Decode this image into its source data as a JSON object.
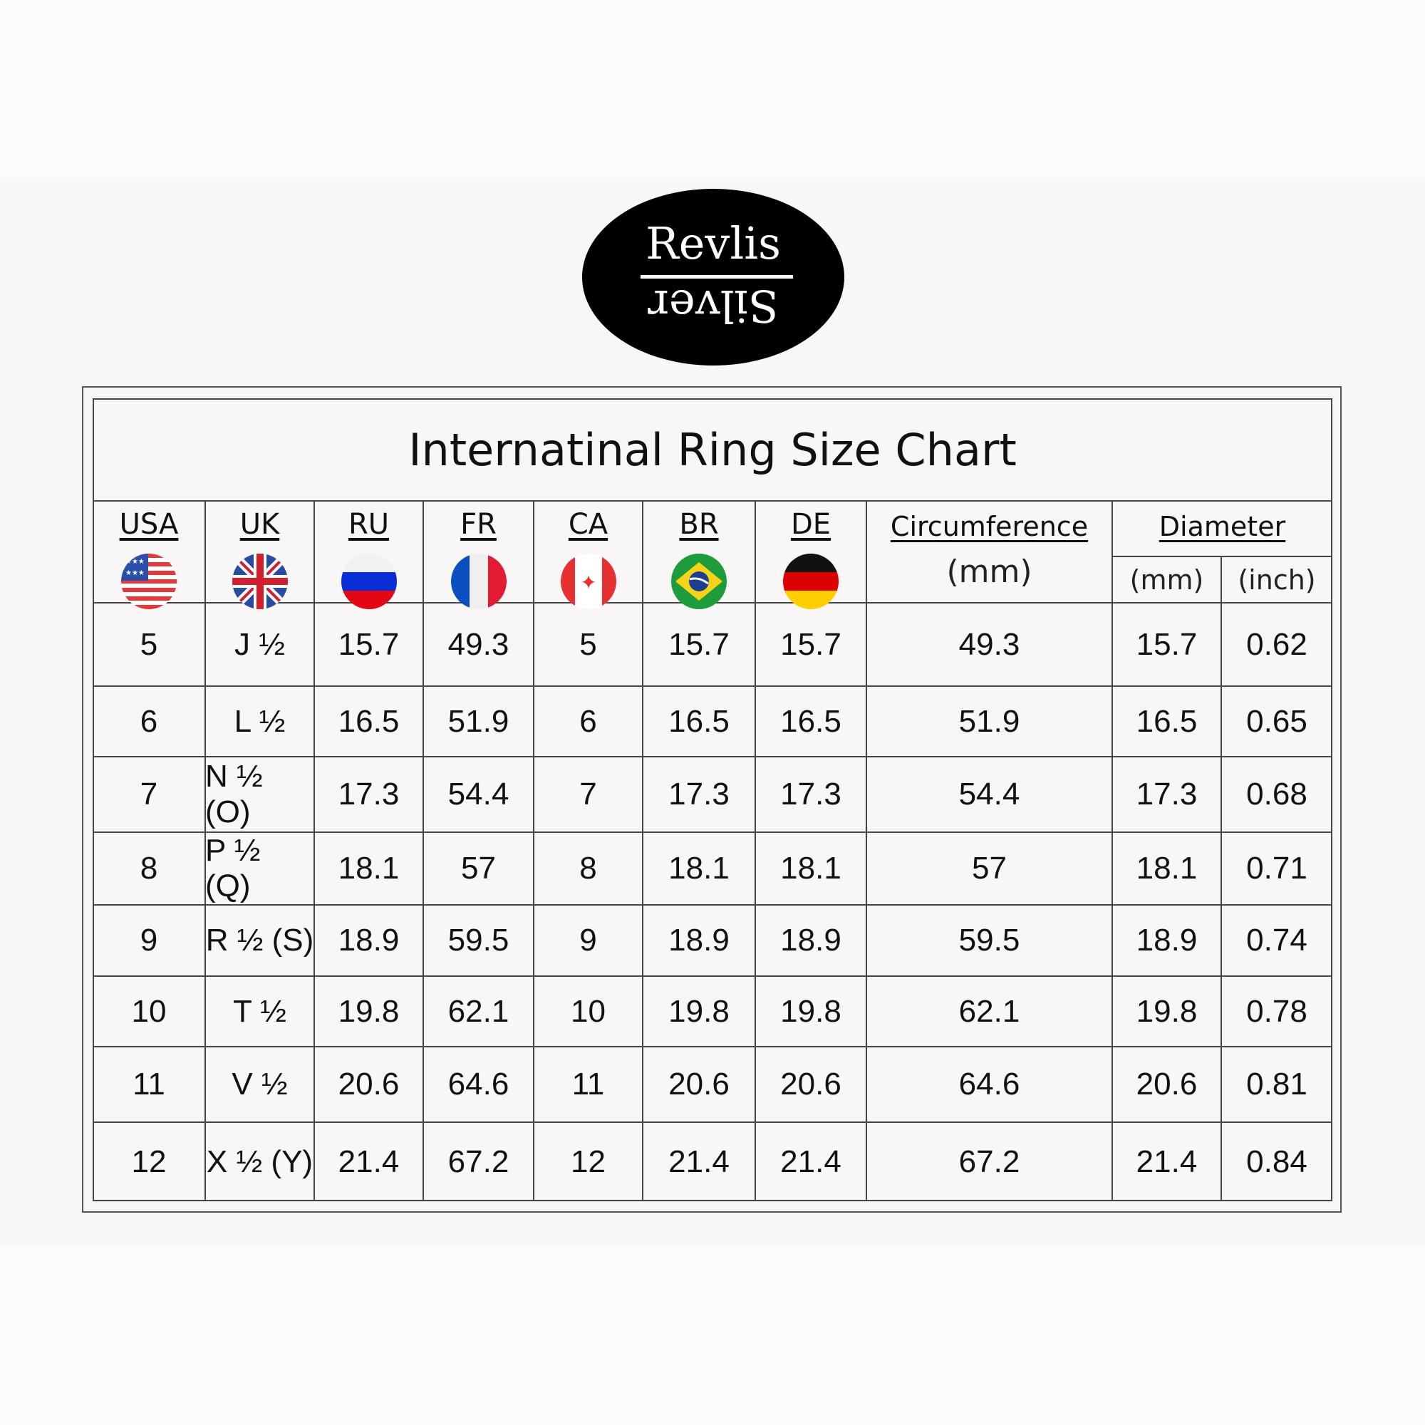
{
  "logo": {
    "top": "Revlis",
    "bottom": "Silver"
  },
  "title": "Internatinal Ring Size Chart",
  "headers": [
    {
      "label": "USA",
      "flag": "us-flag-icon"
    },
    {
      "label": "UK",
      "flag": "uk-flag-icon"
    },
    {
      "label": "RU",
      "flag": "russia-flag-icon"
    },
    {
      "label": "FR",
      "flag": "france-flag-icon"
    },
    {
      "label": "CA",
      "flag": "canada-flag-icon"
    },
    {
      "label": "BR",
      "flag": "brazil-flag-icon"
    },
    {
      "label": "DE",
      "flag": "germany-flag-icon"
    }
  ],
  "circumference": {
    "label": "Circumference",
    "unit": "(mm)"
  },
  "diameter": {
    "label": "Diameter",
    "unit_mm": "(mm)",
    "unit_inch": "(inch)"
  },
  "rows": [
    [
      "5",
      "J ½",
      "15.7",
      "49.3",
      "5",
      "15.7",
      "15.7",
      "49.3",
      "15.7",
      "0.62"
    ],
    [
      "6",
      "L ½",
      "16.5",
      "51.9",
      "6",
      "16.5",
      "16.5",
      "51.9",
      "16.5",
      "0.65"
    ],
    [
      "7",
      "N ½ (O)",
      "17.3",
      "54.4",
      "7",
      "17.3",
      "17.3",
      "54.4",
      "17.3",
      "0.68"
    ],
    [
      "8",
      "P ½ (Q)",
      "18.1",
      "57",
      "8",
      "18.1",
      "18.1",
      "57",
      "18.1",
      "0.71"
    ],
    [
      "9",
      "R ½ (S)",
      "18.9",
      "59.5",
      "9",
      "18.9",
      "18.9",
      "59.5",
      "18.9",
      "0.74"
    ],
    [
      "10",
      "T ½",
      "19.8",
      "62.1",
      "10",
      "19.8",
      "19.8",
      "62.1",
      "19.8",
      "0.78"
    ],
    [
      "11",
      "V ½",
      "20.6",
      "64.6",
      "11",
      "20.6",
      "20.6",
      "64.6",
      "20.6",
      "0.81"
    ],
    [
      "12",
      "X ½ (Y)",
      "21.4",
      "67.2",
      "12",
      "21.4",
      "21.4",
      "67.2",
      "21.4",
      "0.84"
    ]
  ]
}
